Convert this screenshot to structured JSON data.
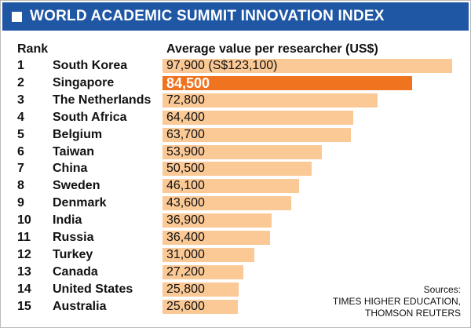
{
  "header": {
    "title": "WORLD ACADEMIC SUMMIT INNOVATION INDEX",
    "banner_color": "#1f57a5",
    "rank_heading": "Rank",
    "value_heading": "Average value per researcher (US$)"
  },
  "chart_data": {
    "type": "bar",
    "orientation": "horizontal",
    "title": "WORLD ACADEMIC SUMMIT INNOVATION INDEX",
    "ylabel": "Average value per researcher (US$)",
    "categories": [
      "South Korea",
      "Singapore",
      "The Netherlands",
      "South Africa",
      "Belgium",
      "Taiwan",
      "China",
      "Sweden",
      "Denmark",
      "India",
      "Russia",
      "Turkey",
      "Canada",
      "United States",
      "Australia"
    ],
    "ranks": [
      "1",
      "2",
      "3",
      "4",
      "5",
      "6",
      "7",
      "8",
      "9",
      "10",
      "11",
      "12",
      "13",
      "14",
      "15"
    ],
    "values": [
      97900,
      84500,
      72800,
      64400,
      63700,
      53900,
      50500,
      46100,
      43600,
      36900,
      36400,
      31000,
      27200,
      25800,
      25600
    ],
    "value_labels": [
      "97,900 (S$123,100)",
      "84,500",
      "72,800",
      "64,400",
      "63,700",
      "53,900",
      "50,500",
      "46,100",
      "43,600",
      "36,900",
      "36,400",
      "31,000",
      "27,200",
      "25,800",
      "25,600"
    ],
    "highlight_index": 1,
    "bar_color": "#fbc996",
    "highlight_color": "#f07320",
    "label_color": "#111111",
    "highlight_label_color": "#ffffff",
    "xlim": [
      0,
      97900
    ],
    "grid": false,
    "legend": "none"
  },
  "sources": {
    "heading": "Sources:",
    "line1": "TIMES HIGHER EDUCATION,",
    "line2": "THOMSON REUTERS"
  }
}
